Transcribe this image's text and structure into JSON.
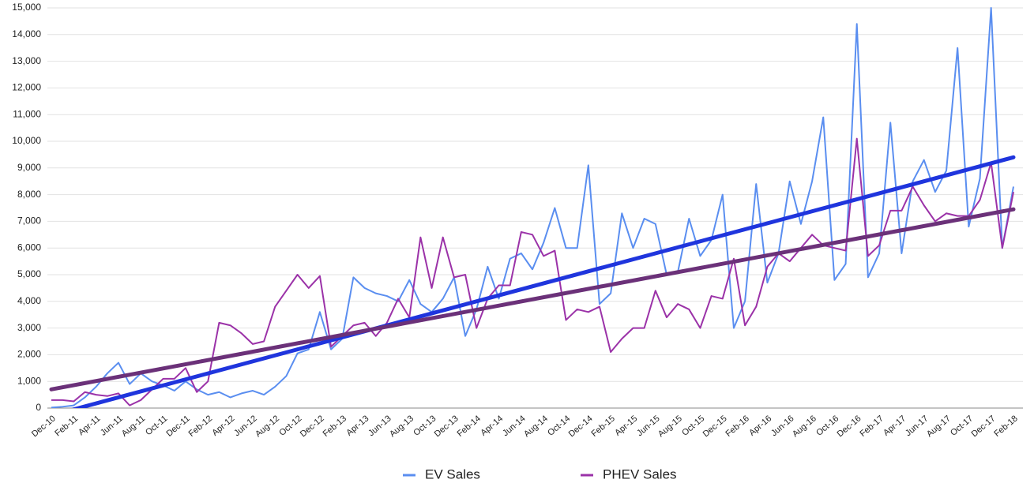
{
  "chart_data": {
    "type": "line",
    "categories": [
      "Dec-10",
      null,
      "Feb-11",
      null,
      "Apr-11",
      null,
      "Jun-11",
      null,
      "Aug-11",
      null,
      "Oct-11",
      null,
      "Dec-11",
      null,
      "Feb-12",
      null,
      "Apr-12",
      null,
      "Jun-12",
      null,
      "Aug-12",
      null,
      "Oct-12",
      null,
      "Dec-12",
      null,
      "Feb-13",
      null,
      "Apr-13",
      null,
      "Jun-13",
      null,
      "Aug-13",
      null,
      "Oct-13",
      null,
      "Dec-13",
      null,
      "Feb-14",
      null,
      "Apr-14",
      null,
      "Jun-14",
      null,
      "Aug-14",
      null,
      "Oct-14",
      null,
      "Dec-14",
      null,
      "Feb-15",
      null,
      "Apr-15",
      null,
      "Jun-15",
      null,
      "Aug-15",
      null,
      "Oct-15",
      null,
      "Dec-15",
      null,
      "Feb-16",
      null,
      "Apr-16",
      null,
      "Jun-16",
      null,
      "Aug-16",
      null,
      "Oct-16",
      null,
      "Dec-16",
      null,
      "Feb-17",
      null,
      "Apr-17",
      null,
      "Jun-17",
      null,
      "Aug-17",
      null,
      "Oct-17",
      null,
      "Dec-17",
      null,
      "Feb-18"
    ],
    "series": [
      {
        "name": "EV Sales",
        "color": "#5a8ef0",
        "values": [
          20,
          50,
          100,
          400,
          800,
          1300,
          1700,
          900,
          1300,
          1000,
          850,
          650,
          1000,
          700,
          500,
          600,
          400,
          550,
          650,
          500,
          800,
          1200,
          2050,
          2200,
          3600,
          2200,
          2600,
          4900,
          4500,
          4300,
          4200,
          4000,
          4800,
          3900,
          3600,
          4100,
          4900,
          2700,
          3700,
          5300,
          4100,
          5600,
          5800,
          5200,
          6200,
          7500,
          6000,
          6000,
          9100,
          3900,
          4300,
          7300,
          6000,
          7100,
          6900,
          5000,
          5100,
          7100,
          5700,
          6300,
          8000,
          3000,
          4000,
          8400,
          4700,
          5800,
          8500,
          6900,
          8500,
          10900,
          4800,
          5400,
          14400,
          4900,
          5800,
          10700,
          5800,
          8500,
          9300,
          8100,
          8900,
          13500,
          6800,
          8600,
          15000,
          6000,
          8300
        ]
      },
      {
        "name": "PHEV Sales",
        "color": "#9b32a8",
        "values": [
          300,
          300,
          250,
          600,
          500,
          450,
          550,
          100,
          300,
          700,
          1100,
          1100,
          1500,
          600,
          1000,
          3200,
          3100,
          2800,
          2400,
          2500,
          3800,
          4400,
          5000,
          4500,
          4950,
          2300,
          2700,
          3100,
          3200,
          2700,
          3200,
          4100,
          3400,
          6400,
          4500,
          6400,
          4900,
          5000,
          3000,
          4100,
          4600,
          4600,
          6600,
          6500,
          5700,
          5900,
          3300,
          3700,
          3600,
          3800,
          2100,
          2600,
          3000,
          3000,
          4400,
          3400,
          3900,
          3700,
          3000,
          4200,
          4100,
          5600,
          3100,
          3800,
          5300,
          5800,
          5500,
          6000,
          6500,
          6100,
          6000,
          5900,
          10100,
          5700,
          6100,
          7400,
          7400,
          8300,
          7600,
          7000,
          7300,
          7200,
          7200,
          7800,
          9200,
          6000,
          8100
        ]
      }
    ],
    "trendlines": [
      {
        "color": "#1f35dd",
        "values": [
          -275,
          9400
        ]
      },
      {
        "color": "#6b3179",
        "values": [
          700,
          7450
        ]
      }
    ],
    "ylim": [
      0,
      15000
    ],
    "yticks": [
      0,
      {
        "value": 1000,
        "label": "1,000"
      },
      {
        "value": 2000,
        "label": "2,000"
      },
      {
        "value": 3000,
        "label": "3,000"
      },
      {
        "value": 4000,
        "label": "4,000"
      },
      {
        "value": 5000,
        "label": "5,000"
      },
      {
        "value": 6000,
        "label": "6,000"
      },
      {
        "value": 7000,
        "label": "7,000"
      },
      {
        "value": 8000,
        "label": "8,000"
      },
      {
        "value": 9000,
        "label": "9,000"
      },
      {
        "value": 10000,
        "label": "10,000"
      },
      {
        "value": 11000,
        "label": "11,000"
      },
      {
        "value": 12000,
        "label": "12,000"
      },
      {
        "value": 13000,
        "label": "13,000"
      },
      {
        "value": 14000,
        "label": "14,000"
      },
      {
        "value": 15000,
        "label": "15,000"
      }
    ],
    "grid": true,
    "legend": "bottom"
  }
}
